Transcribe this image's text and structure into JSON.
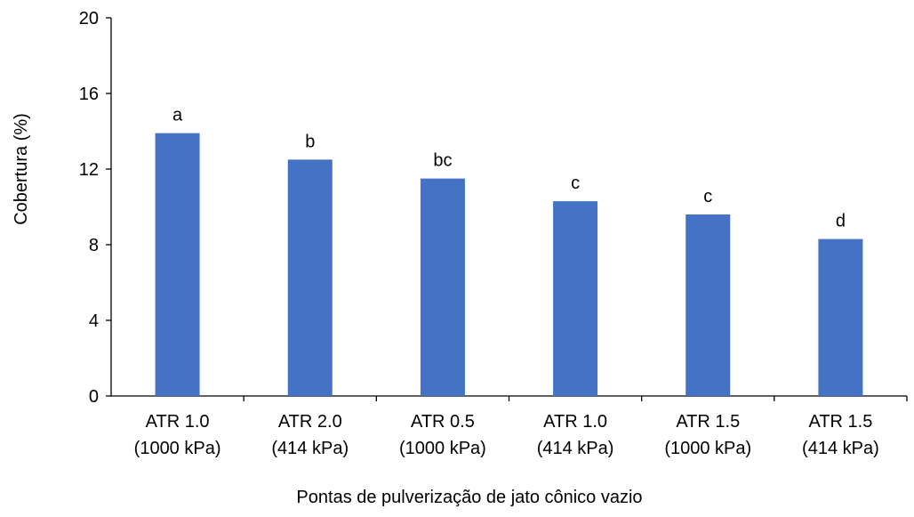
{
  "chart_data": {
    "type": "bar",
    "title": "",
    "xlabel": "Pontas de pulverização de jato cônico vazio",
    "ylabel": "Cobertura (%)",
    "ylim": [
      0,
      20
    ],
    "yticks": [
      "0",
      "4",
      "8",
      "12",
      "16",
      "20"
    ],
    "categories": [
      [
        "ATR 1.0",
        "(1000 kPa)"
      ],
      [
        "ATR 2.0",
        "(414 kPa)"
      ],
      [
        "ATR 0.5",
        "(1000 kPa)"
      ],
      [
        "ATR 1.0",
        "(414 kPa)"
      ],
      [
        "ATR 1.5",
        "(1000 kPa)"
      ],
      [
        "ATR 1.5",
        "(414 kPa)"
      ]
    ],
    "values": [
      13.9,
      12.5,
      11.5,
      10.3,
      9.6,
      8.3
    ],
    "labels": [
      "a",
      "b",
      "bc",
      "c",
      "c",
      "d"
    ],
    "bar_color": "#4472C4",
    "axis_color": "#000000",
    "grid": false,
    "legend": "none"
  }
}
